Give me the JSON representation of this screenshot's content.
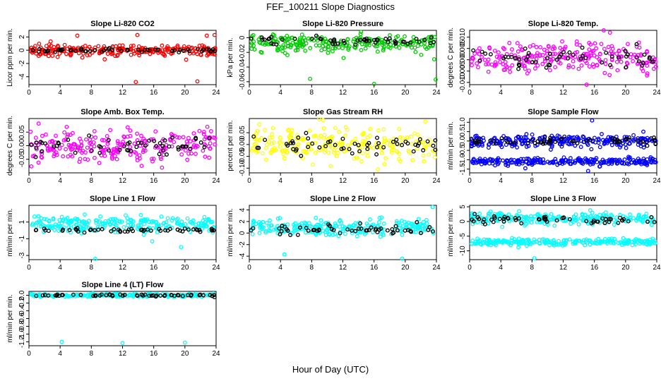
{
  "figure": {
    "title": "FEF_100211  Slope Diagnostics",
    "xlabel": "Hour of Day (UTC)"
  },
  "chart_data": [
    {
      "type": "scatter",
      "title": "Slope Li-820 CO2",
      "ylabel": "Licor ppm per min.",
      "xlim": [
        0,
        24
      ],
      "xticks": [
        "0",
        "4",
        "8",
        "12",
        "16",
        "20",
        "24"
      ],
      "ylim": [
        -5.2,
        3
      ],
      "yticks": [
        -4,
        -2,
        0,
        2
      ],
      "ytick_labels": [
        "-4",
        "-2",
        "0",
        "2"
      ],
      "series": [
        {
          "name": "",
          "color": "#ff0000",
          "center": 0,
          "spread": 0.9
        },
        {
          "name": "",
          "color": "#000000",
          "center": 0,
          "spread": 0.3
        }
      ],
      "outliers": [
        [
          13.7,
          -4.8
        ],
        [
          21.6,
          -4.7
        ],
        [
          6.2,
          2.2
        ],
        [
          13.9,
          2.3
        ],
        [
          22.8,
          2.2
        ],
        [
          23.8,
          2.3
        ]
      ]
    },
    {
      "type": "scatter",
      "title": "Slope Li-820 Pressure",
      "ylabel": "kPa per min.",
      "xlim": [
        0,
        24
      ],
      "xticks": [
        "0",
        "4",
        "8",
        "12",
        "16",
        "20",
        "24"
      ],
      "ylim": [
        -0.064,
        0.01
      ],
      "yticks": [
        -0.06,
        -0.04,
        -0.02,
        0
      ],
      "ytick_labels": [
        "-0.06",
        "-0.04",
        "-0.02",
        "0"
      ],
      "series": [
        {
          "name": "",
          "color": "#00cc00",
          "center": -0.007,
          "spread": 0.014
        },
        {
          "name": "",
          "color": "#000000",
          "center": -0.004,
          "spread": 0.006
        }
      ],
      "outliers": [
        [
          7.8,
          -0.056
        ],
        [
          16.0,
          -0.063
        ],
        [
          23.9,
          -0.057
        ]
      ]
    },
    {
      "type": "scatter",
      "title": "Slope Li-820 Temp.",
      "ylabel": "degrees C per min.",
      "xlim": [
        0,
        24
      ],
      "xticks": [
        "0",
        "4",
        "8",
        "12",
        "16",
        "20",
        "24"
      ],
      "ylim": [
        -0.011,
        0.013
      ],
      "yticks": [
        -0.01,
        -0.005,
        0,
        0.005,
        0.01
      ],
      "ytick_labels": [
        "-0.010",
        "-0.005",
        "0.000",
        "0.005",
        "0.010"
      ],
      "series": [
        {
          "name": "",
          "color": "#ff00ff",
          "center": 0.001,
          "spread": 0.0075
        },
        {
          "name": "",
          "color": "#000000",
          "center": 0.001,
          "spread": 0.005
        }
      ],
      "outliers": [
        [
          15.0,
          -0.011
        ],
        [
          17.2,
          0.013
        ],
        [
          18.0,
          0.012
        ]
      ]
    },
    {
      "type": "scatter",
      "title": "Slope Amb. Box Temp.",
      "ylabel": "degrees C per min.",
      "xlim": [
        0,
        24
      ],
      "xticks": [
        "0",
        "4",
        "8",
        "12",
        "16",
        "20",
        "24"
      ],
      "ylim": [
        -0.1,
        0.1
      ],
      "yticks": [
        -0.05,
        0,
        0.05
      ],
      "ytick_labels": [
        "-0.05",
        "0.00",
        "0.05"
      ],
      "series": [
        {
          "name": "",
          "color": "#ff00ff",
          "center": 0,
          "spread": 0.07
        },
        {
          "name": "",
          "color": "#000000",
          "center": 0,
          "spread": 0.04
        }
      ],
      "outliers": []
    },
    {
      "type": "scatter",
      "title": "Slope Gas Stream RH",
      "ylabel": "percent per min.",
      "xlim": [
        0,
        24
      ],
      "xticks": [
        "0",
        "4",
        "8",
        "12",
        "16",
        "20",
        "24"
      ],
      "ylim": [
        -0.12,
        0.11
      ],
      "yticks": [
        -0.1,
        -0.05,
        0,
        0.05
      ],
      "ytick_labels": [
        "-0.10",
        "-0.05",
        "0.00",
        "0.05"
      ],
      "series": [
        {
          "name": "",
          "color": "#ffff00",
          "center": 0,
          "spread": 0.07
        },
        {
          "name": "",
          "color": "#000000",
          "center": 0,
          "spread": 0.04
        }
      ],
      "outliers": []
    },
    {
      "type": "scatter",
      "title": "Slope Sample Flow",
      "ylabel": "ml/min per min.",
      "xlim": [
        0,
        24
      ],
      "xticks": [
        "0",
        "4",
        "8",
        "12",
        "16",
        "20",
        "24"
      ],
      "ylim": [
        -1.7,
        1.2
      ],
      "yticks": [
        -1.5,
        -1,
        -0.5,
        0,
        0.5,
        1
      ],
      "ytick_labels": [
        "-1.5",
        "-1.0",
        "-0.5",
        "0.0",
        "0.5",
        "1.0"
      ],
      "series": [
        {
          "name": "",
          "color": "#0000ff",
          "center": 0,
          "spread": 0.35
        },
        {
          "name": "",
          "color": "#0000ff",
          "center": -1.1,
          "spread": 0.22
        },
        {
          "name": "",
          "color": "#000000",
          "center": 0,
          "spread": 0.25
        }
      ],
      "outliers": [
        [
          15.7,
          1.1
        ],
        [
          15.2,
          -1.6
        ]
      ]
    },
    {
      "type": "scatter",
      "title": "Slope Line 1 Flow",
      "ylabel": "ml/min per min.",
      "xlim": [
        0,
        24
      ],
      "xticks": [
        "0",
        "4",
        "8",
        "12",
        "16",
        "20",
        "24"
      ],
      "ylim": [
        -3.5,
        3
      ],
      "yticks": [
        -3,
        -1,
        1
      ],
      "ytick_labels": [
        "-3",
        "-1",
        "1"
      ],
      "series": [
        {
          "name": "",
          "color": "#00ffff",
          "center": 0.7,
          "spread": 1.1
        },
        {
          "name": "",
          "color": "#000000",
          "center": 0,
          "spread": 0.25
        }
      ],
      "outliers": [
        [
          8.5,
          -3.4
        ],
        [
          15.8,
          -1.3
        ],
        [
          19.5,
          -2.0
        ]
      ]
    },
    {
      "type": "scatter",
      "title": "Slope Line 2 Flow",
      "ylabel": "ml/min per min.",
      "xlim": [
        0,
        24
      ],
      "xticks": [
        "0",
        "4",
        "8",
        "12",
        "16",
        "20",
        "24"
      ],
      "ylim": [
        -4.6,
        4.8
      ],
      "yticks": [
        -4,
        -2,
        0,
        2,
        4
      ],
      "ytick_labels": [
        "-4",
        "-2",
        "0",
        "2",
        "4"
      ],
      "series": [
        {
          "name": "",
          "color": "#00ffff",
          "center": 1,
          "spread": 1.6
        },
        {
          "name": "",
          "color": "#000000",
          "center": 0.5,
          "spread": 1.0
        }
      ],
      "outliers": [
        [
          4.5,
          -3.7
        ],
        [
          19.6,
          -4.4
        ],
        [
          23.5,
          4.5
        ]
      ]
    },
    {
      "type": "scatter",
      "title": "Slope Line 3 Flow",
      "ylabel": "ml/min per min.",
      "xlim": [
        0,
        24
      ],
      "xticks": [
        "0",
        "4",
        "8",
        "12",
        "16",
        "20",
        "24"
      ],
      "ylim": [
        -13,
        5.5
      ],
      "yticks": [
        -10,
        -5,
        0,
        5
      ],
      "ytick_labels": [
        "-10",
        "-5",
        "0",
        "5"
      ],
      "series": [
        {
          "name": "",
          "color": "#00ffff",
          "center": 1,
          "spread": 2.2
        },
        {
          "name": "",
          "color": "#00ffff",
          "center": -7,
          "spread": 1.2
        },
        {
          "name": "",
          "color": "#000000",
          "center": 0.5,
          "spread": 1.8
        }
      ],
      "outliers": [
        [
          8.3,
          -12.5
        ]
      ]
    },
    {
      "type": "scatter",
      "title": "Slope Line 4 (LT) Flow",
      "ylabel": "ml/min per min.",
      "xlim": [
        0,
        24
      ],
      "xticks": [
        "0",
        "4",
        "8",
        "12",
        "16",
        "20",
        "24"
      ],
      "ylim": [
        -1.3,
        0.1
      ],
      "yticks": [
        -1.2,
        -1,
        -0.8,
        -0.6,
        -0.4,
        -0.2,
        0
      ],
      "ytick_labels": [
        "-1.2",
        "-1.0",
        "-0.8",
        "-0.6",
        "-0.4",
        "-0.2",
        "0.0"
      ],
      "series": [
        {
          "name": "",
          "color": "#00ffff",
          "center": 0,
          "spread": 0.04
        },
        {
          "name": "",
          "color": "#000000",
          "center": 0,
          "spread": 0.03
        }
      ],
      "outliers": [
        [
          4.2,
          -1.2
        ],
        [
          12.0,
          -1.23
        ],
        [
          20.0,
          -1.22
        ]
      ]
    }
  ]
}
